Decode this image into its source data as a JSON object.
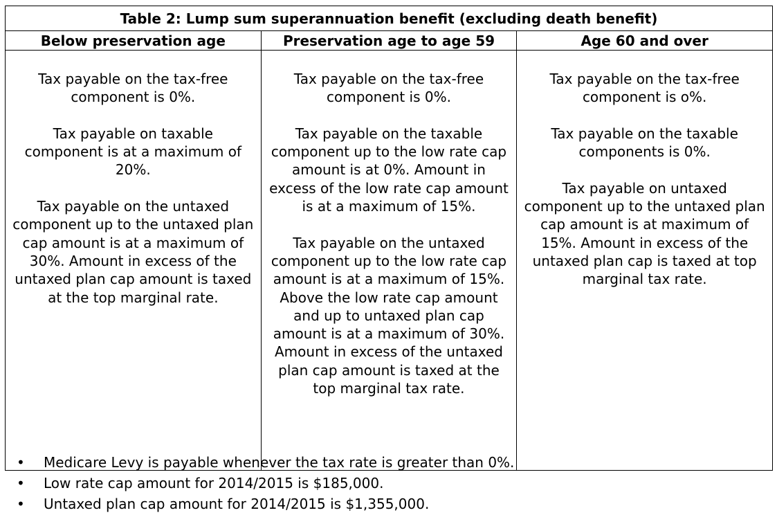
{
  "table": {
    "title": "Table 2: Lump sum superannuation benefit (excluding death benefit)",
    "headers": [
      "Below preservation age",
      "Preservation age to age 59",
      "Age 60 and over"
    ],
    "cells": [
      [
        "Tax payable on the tax-free component is 0%.",
        "Tax payable on taxable component is at a maximum of 20%.",
        "Tax payable on the untaxed component up to the untaxed plan cap amount is at a maximum of 30%.  Amount in excess of the untaxed plan cap amount is taxed at the top marginal rate."
      ],
      [
        "Tax payable on the tax-free component is 0%.",
        "Tax payable on the taxable component up to the low rate cap amount is at 0%.  Amount in excess of the low rate cap amount is at a maximum of 15%.",
        "Tax payable on the untaxed component up to the low rate cap amount is at a maximum of 15%.  Above the low rate cap amount and up to untaxed plan cap amount is at a maximum of 30%.  Amount in excess of the untaxed plan cap amount is taxed at the top marginal tax rate."
      ],
      [
        "Tax payable on the tax-free component is o%.",
        "Tax payable on the taxable components is 0%.",
        "Tax payable on untaxed component up to the untaxed plan cap amount is at maximum of 15%.  Amount in excess of the untaxed plan cap is taxed at top marginal tax rate."
      ]
    ]
  },
  "notes": [
    "Medicare Levy is payable whenever the tax rate is greater than 0%.",
    "Low rate cap amount for 2014/2015 is $185,000.",
    "Untaxed plan cap amount for 2014/2015 is $1,355,000."
  ]
}
